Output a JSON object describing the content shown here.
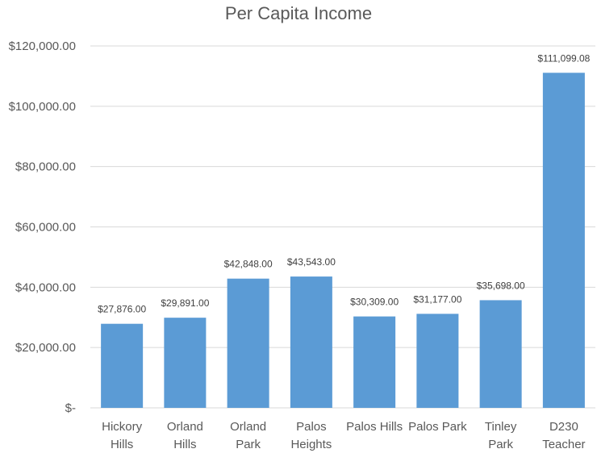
{
  "chart_data": {
    "type": "bar",
    "title": "Per Capita Income",
    "xlabel": "",
    "ylabel": "",
    "categories": [
      [
        "Hickory",
        "Hills"
      ],
      [
        "Orland",
        "Hills"
      ],
      [
        "Orland",
        "Park"
      ],
      [
        "Palos",
        "Heights"
      ],
      [
        "Palos Hills"
      ],
      [
        "Palos Park"
      ],
      [
        "Tinley",
        "Park"
      ],
      [
        "D230",
        "Teacher"
      ]
    ],
    "values": [
      27876,
      29891,
      42848,
      43543,
      30309,
      31177,
      35698,
      111099.08
    ],
    "data_labels": [
      "$27,876.00",
      "$29,891.00",
      "$42,848.00",
      "$43,543.00",
      "$30,309.00",
      "$31,177.00",
      "$35,698.00",
      "$111,099.08"
    ],
    "ylim": [
      0,
      120000
    ],
    "yticks": [
      0,
      20000,
      40000,
      60000,
      80000,
      100000,
      120000
    ],
    "ytick_labels": [
      "$-",
      "$20,000.00",
      "$40,000.00",
      "$60,000.00",
      "$80,000.00",
      "$100,000.00",
      "$120,000.00"
    ],
    "grid": true,
    "legend": "none",
    "bar_color": "#5b9bd5"
  }
}
